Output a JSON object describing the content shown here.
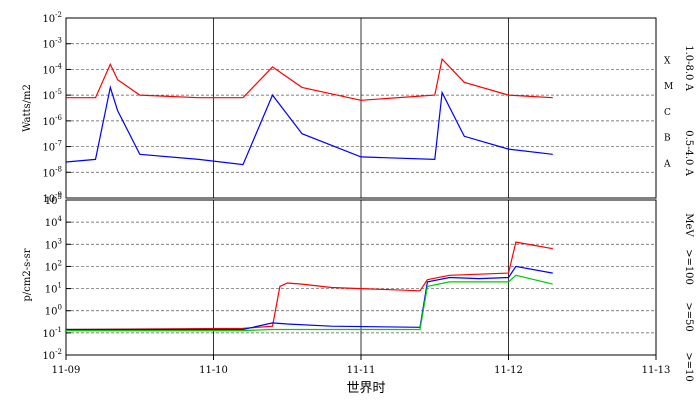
{
  "chart_data": [
    {
      "type": "line",
      "panel": "xray",
      "ylabel": "Watts/m2",
      "yscale": "log",
      "ylim_exp": [
        -9,
        -2
      ],
      "y_tick_exponents": [
        -9,
        -8,
        -7,
        -6,
        -5,
        -4,
        -3,
        -2
      ],
      "x_tick_labels": [
        "11-09",
        "11-10",
        "11-11",
        "11-12",
        "11-13"
      ],
      "xlim_days": [
        0,
        4
      ],
      "class_labels": [
        "X",
        "M",
        "C",
        "B",
        "A"
      ],
      "class_exponents": [
        -4,
        -5,
        -6,
        -7,
        -8
      ],
      "grid": true,
      "series": [
        {
          "name": "1.0-8.0 A",
          "color": "#ff0000",
          "x": [
            0,
            0.2,
            0.3,
            0.35,
            0.5,
            0.9,
            1.2,
            1.4,
            1.6,
            2.0,
            2.5,
            2.55,
            2.7,
            3.0,
            3.3
          ],
          "log_y": [
            -5.1,
            -5.1,
            -3.8,
            -4.4,
            -5.0,
            -5.1,
            -5.1,
            -3.9,
            -4.7,
            -5.2,
            -5.0,
            -3.6,
            -4.5,
            -5.0,
            -5.1
          ]
        },
        {
          "name": "0.5-4.0 A",
          "color": "#0000ff",
          "x": [
            0,
            0.2,
            0.3,
            0.35,
            0.5,
            0.9,
            1.2,
            1.4,
            1.6,
            2.0,
            2.5,
            2.55,
            2.7,
            3.0,
            3.3
          ],
          "log_y": [
            -7.6,
            -7.5,
            -4.7,
            -5.6,
            -7.3,
            -7.5,
            -7.7,
            -5.0,
            -6.5,
            -7.4,
            -7.5,
            -4.9,
            -6.6,
            -7.1,
            -7.3
          ]
        }
      ]
    },
    {
      "type": "line",
      "panel": "protons",
      "ylabel": "p/cm2-s-sr",
      "yscale": "log",
      "ylim_exp": [
        -2,
        5
      ],
      "y_tick_exponents": [
        -2,
        -1,
        0,
        1,
        2,
        3,
        4,
        5
      ],
      "x_tick_labels": [
        "11-09",
        "11-10",
        "11-11",
        "11-12",
        "11-13"
      ],
      "xlim_days": [
        0,
        4
      ],
      "xlabel": "世界时",
      "unit_label": "MeV",
      "grid": true,
      "series": [
        {
          "name": ">=10",
          "color": "#ff0000",
          "x": [
            0,
            1.2,
            1.4,
            1.45,
            1.5,
            1.6,
            1.8,
            2.0,
            2.2,
            2.4,
            2.45,
            2.6,
            2.8,
            3.0,
            3.05,
            3.3
          ],
          "log_y": [
            -0.85,
            -0.8,
            -0.7,
            1.1,
            1.25,
            1.2,
            1.05,
            1.0,
            0.95,
            0.9,
            1.4,
            1.6,
            1.65,
            1.7,
            3.1,
            2.8
          ]
        },
        {
          "name": ">=50",
          "color": "#0000ff",
          "x": [
            0,
            1.2,
            1.4,
            1.5,
            1.8,
            2.4,
            2.45,
            2.6,
            2.8,
            3.0,
            3.05,
            3.3
          ],
          "log_y": [
            -0.85,
            -0.85,
            -0.55,
            -0.6,
            -0.7,
            -0.75,
            1.3,
            1.5,
            1.45,
            1.5,
            2.0,
            1.7
          ]
        },
        {
          "name": ">=100",
          "color": "#00cc00",
          "x": [
            0,
            1.2,
            1.4,
            1.8,
            2.4,
            2.45,
            2.6,
            2.8,
            3.0,
            3.05,
            3.3
          ],
          "log_y": [
            -0.9,
            -0.9,
            -0.85,
            -0.85,
            -0.85,
            1.1,
            1.3,
            1.3,
            1.3,
            1.6,
            1.2
          ]
        }
      ]
    }
  ]
}
